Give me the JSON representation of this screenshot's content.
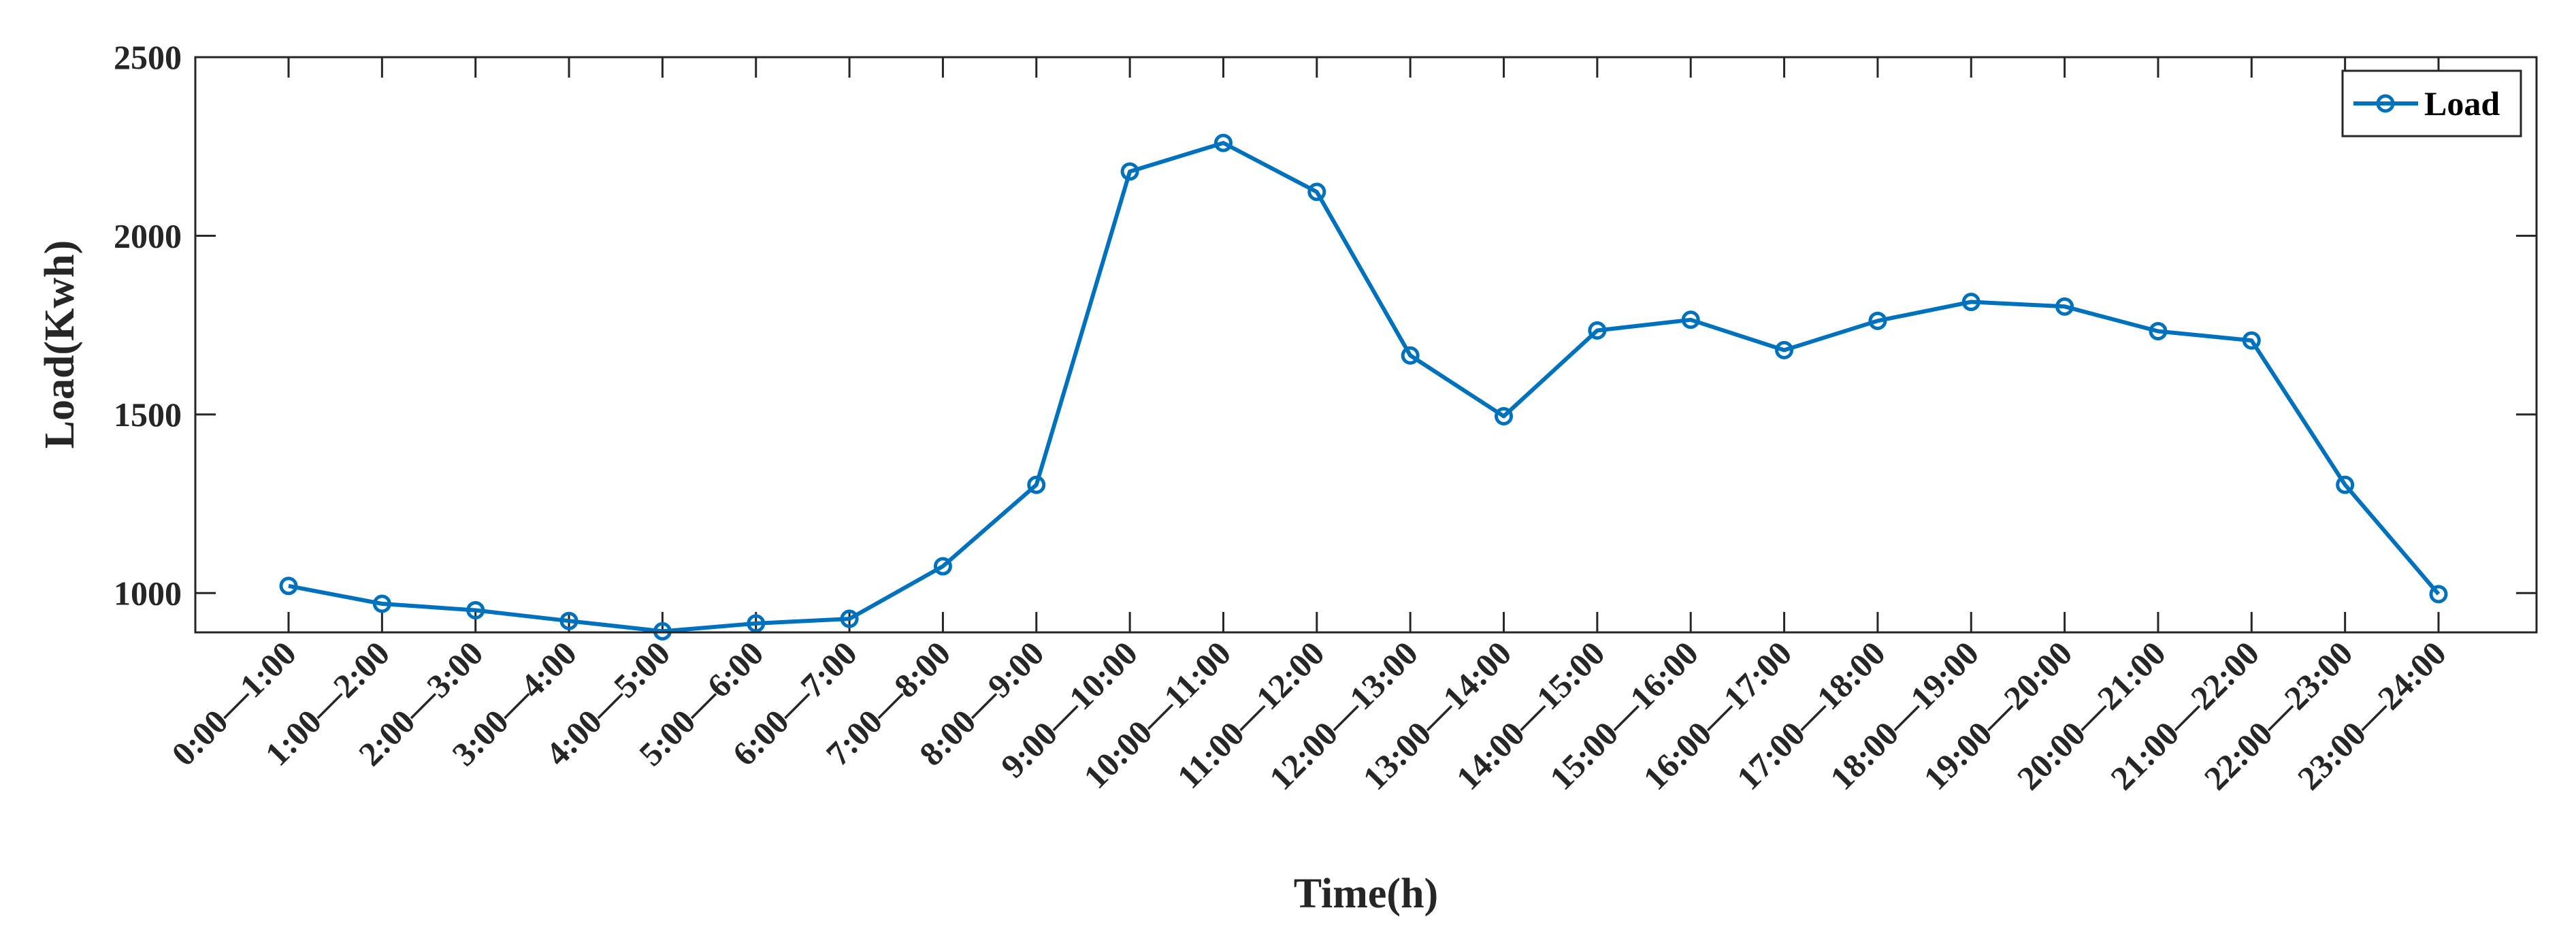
{
  "chart_data": {
    "type": "line",
    "categories": [
      "0:00—1:00",
      "1:00—2:00",
      "2:00—3:00",
      "3:00—4:00",
      "4:00—5:00",
      "5:00—6:00",
      "6:00—7:00",
      "7:00—8:00",
      "8:00—9:00",
      "9:00—10:00",
      "10:00—11:00",
      "11:00—12:00",
      "12:00—13:00",
      "13:00—14:00",
      "14:00—15:00",
      "15:00—16:00",
      "16:00—17:00",
      "17:00—18:00",
      "18:00—19:00",
      "19:00—20:00",
      "20:00—21:00",
      "21:00—22:00",
      "22:00—23:00",
      "23:00—24:00"
    ],
    "series": [
      {
        "name": "Load",
        "color": "#0072BD",
        "marker": "circle",
        "values": [
          1020,
          970,
          952,
          922,
          893,
          915,
          928,
          1075,
          1303,
          2180,
          2260,
          2123,
          1665,
          1495,
          1735,
          1765,
          1680,
          1762,
          1815,
          1802,
          1733,
          1707,
          1303,
          997
        ]
      }
    ],
    "title": "",
    "xlabel": "Time(h)",
    "ylabel": "Load(Kwh)",
    "ylim": [
      890,
      2500
    ],
    "yticks": [
      1000,
      1500,
      2000,
      2500
    ],
    "grid": false,
    "legend_position": "top-right"
  }
}
